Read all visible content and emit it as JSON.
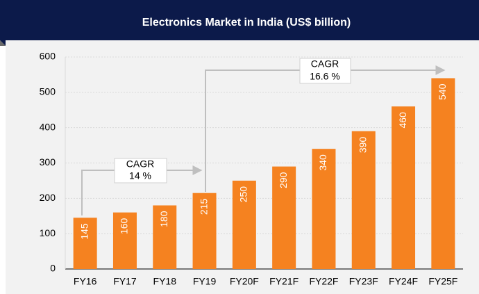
{
  "chart_data": {
    "type": "bar",
    "title": "Electronics Market in India (US$ billion)",
    "categories": [
      "FY16",
      "FY17",
      "FY18",
      "FY19",
      "FY20F",
      "FY21F",
      "FY22F",
      "FY23F",
      "FY24F",
      "FY25F"
    ],
    "values": [
      145,
      160,
      180,
      215,
      250,
      290,
      340,
      390,
      460,
      540
    ],
    "color": "#f58220",
    "ylim": [
      0,
      600
    ],
    "yticks": [
      0,
      100,
      200,
      300,
      400,
      500,
      600
    ],
    "grid": true,
    "annotations": [
      {
        "lines": [
          "CAGR",
          "14 %"
        ]
      },
      {
        "lines": [
          "CAGR",
          "16.6 %"
        ]
      }
    ]
  }
}
